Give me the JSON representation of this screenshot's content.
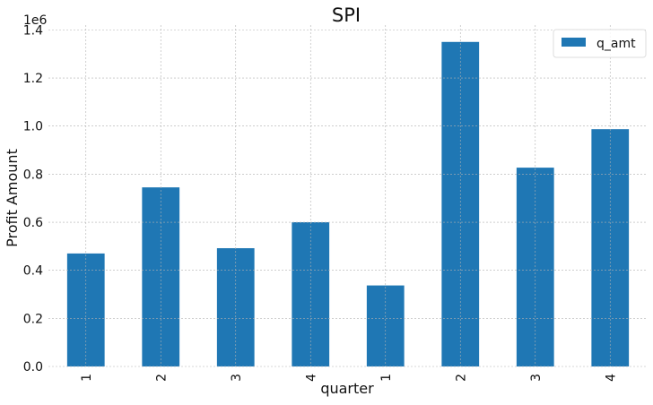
{
  "chart_data": {
    "type": "bar",
    "title": "SPI",
    "xlabel": "quarter",
    "ylabel": "Profit Amount",
    "y_multiplier_label": "1e6",
    "categories": [
      "1",
      "2",
      "3",
      "4",
      "1",
      "2",
      "3",
      "4"
    ],
    "series": [
      {
        "name": "q_amt",
        "values": [
          470000,
          745000,
          492000,
          600000,
          337000,
          1350000,
          827000,
          987000
        ]
      }
    ],
    "ylim": [
      0,
      1420000.0
    ],
    "y_ticks": [
      {
        "value": 0,
        "label": "0.0"
      },
      {
        "value": 200000,
        "label": "0.2"
      },
      {
        "value": 400000,
        "label": "0.4"
      },
      {
        "value": 600000,
        "label": "0.6"
      },
      {
        "value": 800000,
        "label": "0.8"
      },
      {
        "value": 1000000,
        "label": "1.0"
      },
      {
        "value": 1200000,
        "label": "1.2"
      },
      {
        "value": 1400000,
        "label": "1.4"
      }
    ],
    "grid": true,
    "legend_position": "top-right",
    "colors": {
      "bar": "#1f77b4",
      "grid": "#b0b0b0"
    }
  }
}
